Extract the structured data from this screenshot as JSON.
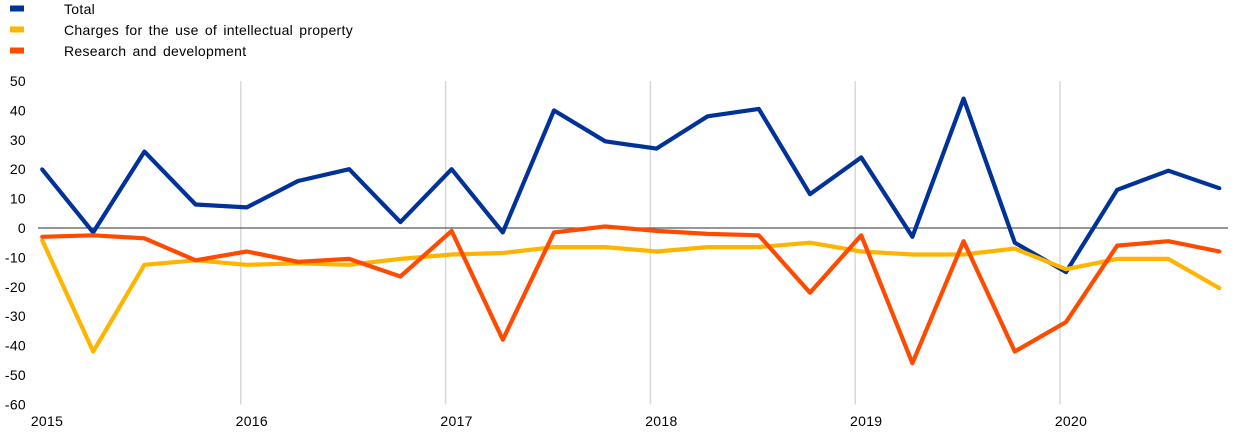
{
  "chart_data": {
    "type": "line",
    "legend_position": "top-left",
    "gridlines": {
      "vertical": true,
      "horizontal": false
    },
    "zero_line": true,
    "ylim": [
      -60,
      50
    ],
    "yticks": [
      50,
      40,
      30,
      20,
      10,
      0,
      -10,
      -20,
      -30,
      -40,
      -50,
      -60
    ],
    "xticks": [
      "2015",
      "2016",
      "2017",
      "2018",
      "2019",
      "2020"
    ],
    "x": [
      2015,
      2015.25,
      2015.5,
      2015.75,
      2016,
      2016.25,
      2016.5,
      2016.75,
      2017,
      2017.25,
      2017.5,
      2017.75,
      2018,
      2018.25,
      2018.5,
      2018.75,
      2019,
      2019.25,
      2019.5,
      2019.75,
      2020,
      2020.25,
      2020.5,
      2020.75
    ],
    "series": [
      {
        "name": "Total",
        "color": "#003299",
        "values": [
          20,
          -1.5,
          26,
          8,
          7,
          16,
          20,
          2,
          20,
          -1.5,
          40,
          29.5,
          27,
          38,
          40.5,
          11.5,
          24,
          -3,
          44,
          -5,
          -15,
          13,
          19.5,
          13.5
        ]
      },
      {
        "name": "Charges for the use of intellectual property",
        "color": "#FFB400",
        "values": [
          -4,
          -42,
          -12.5,
          -11,
          -12.5,
          -12,
          -12.5,
          -10.5,
          -9,
          -8.5,
          -6.5,
          -6.5,
          -8,
          -6.5,
          -6.5,
          -5,
          -8,
          -9,
          -9,
          -7,
          -14,
          -10.5,
          -10.5,
          -20.5
        ]
      },
      {
        "name": "Research and development",
        "color": "#FF4B00",
        "values": [
          -3,
          -2.5,
          -3.5,
          -11,
          -8,
          -11.5,
          -10.5,
          -16.5,
          -1,
          -38,
          -1.5,
          0.5,
          -1,
          -2,
          -2.5,
          -22,
          -2.5,
          -46,
          -4.5,
          -42,
          -32,
          -6,
          -4.5,
          -8
        ]
      }
    ]
  }
}
